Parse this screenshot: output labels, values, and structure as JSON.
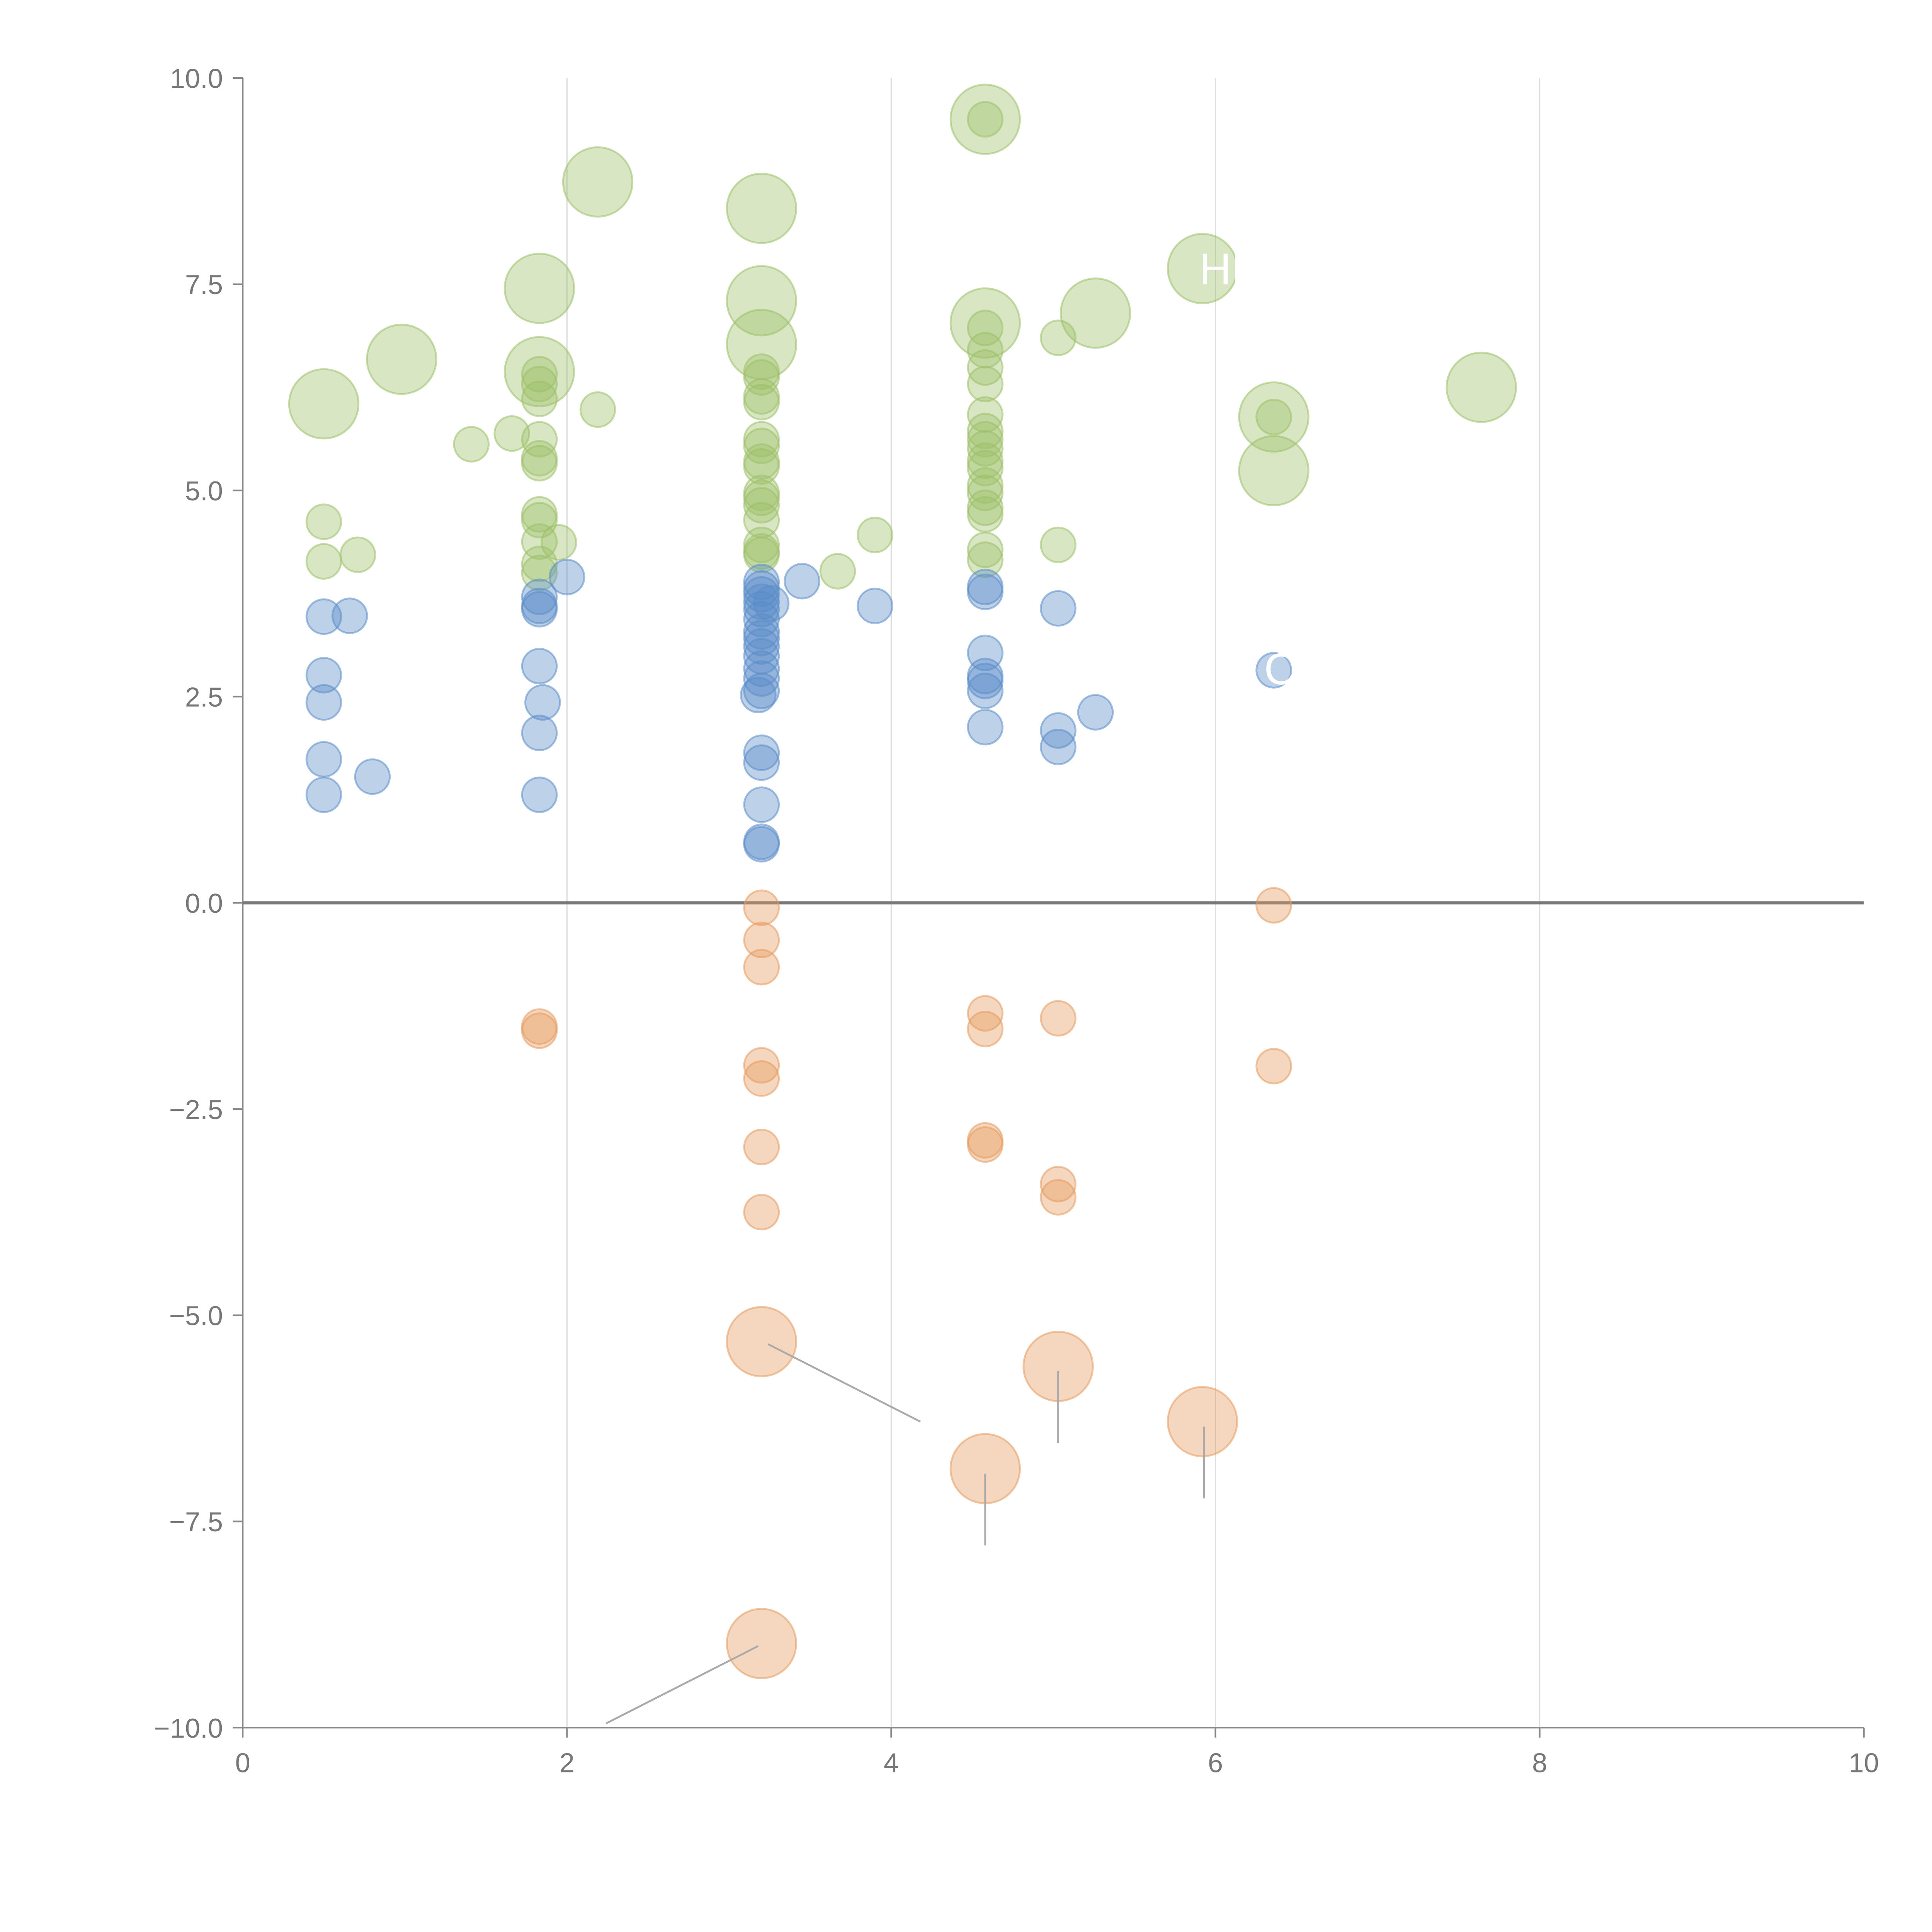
{
  "chart_data": {
    "type": "scatter",
    "title": "",
    "xlabel": "",
    "ylabel": "",
    "xlim": [
      0,
      10
    ],
    "ylim": [
      -10,
      10
    ],
    "x_ticks": [
      0,
      2,
      4,
      6,
      8,
      10
    ],
    "x_tick_labels": [
      "0",
      "2",
      "4",
      "6",
      "8",
      "10"
    ],
    "y_ticks": [
      10,
      7.5,
      5,
      2.5,
      0,
      -2.5,
      -5,
      -7.5,
      -10
    ],
    "y_tick_labels": [
      "10.0",
      "7.5",
      "5.0",
      "2.5",
      "0.0",
      "−2.5",
      "−5.0",
      "−7.5",
      "−10.0"
    ],
    "grid": "vertical",
    "zero_line": true,
    "point_format": "[x, y, size]",
    "series": [
      {
        "name": "green",
        "color": "#9dc068",
        "points": [
          [
            4.58,
            9.5,
            3
          ],
          [
            4.58,
            9.5,
            1
          ],
          [
            2.19,
            8.74,
            3
          ],
          [
            3.2,
            8.42,
            3
          ],
          [
            5.92,
            7.69,
            3
          ],
          [
            1.83,
            7.45,
            3
          ],
          [
            3.2,
            7.3,
            3
          ],
          [
            4.58,
            7.03,
            3
          ],
          [
            4.58,
            6.97,
            1
          ],
          [
            5.26,
            7.15,
            3
          ],
          [
            3.2,
            6.77,
            3
          ],
          [
            0.98,
            6.59,
            3
          ],
          [
            1.83,
            6.44,
            3
          ],
          [
            7.64,
            6.25,
            3
          ],
          [
            0.5,
            6.05,
            3
          ],
          [
            6.36,
            5.89,
            3
          ],
          [
            6.36,
            5.89,
            1
          ],
          [
            6.36,
            5.24,
            3
          ],
          [
            5.03,
            6.85,
            1
          ],
          [
            2.19,
            5.98,
            1
          ],
          [
            1.41,
            5.56,
            1
          ],
          [
            1.66,
            5.69,
            1
          ],
          [
            1.83,
            6.41,
            1
          ],
          [
            1.83,
            6.29,
            1
          ],
          [
            1.83,
            6.11,
            1
          ],
          [
            1.83,
            5.62,
            1
          ],
          [
            1.83,
            5.39,
            1
          ],
          [
            1.83,
            5.33,
            1
          ],
          [
            1.83,
            4.71,
            1
          ],
          [
            1.83,
            4.64,
            1
          ],
          [
            1.83,
            4.38,
            1
          ],
          [
            1.83,
            4.11,
            1
          ],
          [
            1.83,
            4.0,
            1
          ],
          [
            1.95,
            4.37,
            1
          ],
          [
            0.5,
            4.62,
            1
          ],
          [
            0.5,
            4.14,
            1
          ],
          [
            0.71,
            4.22,
            1
          ],
          [
            3.2,
            6.44,
            1
          ],
          [
            3.2,
            6.37,
            1
          ],
          [
            3.2,
            6.14,
            1
          ],
          [
            3.2,
            6.07,
            1
          ],
          [
            3.2,
            5.62,
            1
          ],
          [
            3.2,
            5.54,
            1
          ],
          [
            3.2,
            5.35,
            1
          ],
          [
            3.2,
            5.29,
            1
          ],
          [
            3.2,
            4.97,
            1
          ],
          [
            3.2,
            4.91,
            1
          ],
          [
            3.2,
            4.82,
            1
          ],
          [
            3.2,
            4.64,
            1
          ],
          [
            3.2,
            4.34,
            1
          ],
          [
            3.2,
            4.26,
            1
          ],
          [
            3.2,
            4.22,
            1
          ],
          [
            3.9,
            4.46,
            1
          ],
          [
            3.67,
            4.02,
            1
          ],
          [
            4.58,
            6.7,
            1
          ],
          [
            4.58,
            6.49,
            1
          ],
          [
            4.58,
            6.29,
            1
          ],
          [
            4.58,
            5.92,
            1
          ],
          [
            4.58,
            5.72,
            1
          ],
          [
            4.58,
            5.62,
            1
          ],
          [
            4.58,
            5.51,
            1
          ],
          [
            4.58,
            5.36,
            1
          ],
          [
            4.58,
            5.27,
            1
          ],
          [
            4.58,
            5.06,
            1
          ],
          [
            4.58,
            4.97,
            1
          ],
          [
            4.58,
            4.79,
            1
          ],
          [
            4.58,
            4.71,
            1
          ],
          [
            4.58,
            4.28,
            1
          ],
          [
            4.58,
            4.16,
            1
          ],
          [
            5.03,
            4.34,
            1
          ]
        ]
      },
      {
        "name": "blue",
        "color": "#5b8cc9",
        "points": [
          [
            0.5,
            3.47,
            1
          ],
          [
            0.66,
            3.48,
            1
          ],
          [
            0.5,
            2.76,
            1
          ],
          [
            0.5,
            2.43,
            1
          ],
          [
            0.5,
            1.74,
            1
          ],
          [
            0.5,
            1.31,
            1
          ],
          [
            0.8,
            1.53,
            1
          ],
          [
            1.83,
            3.71,
            1
          ],
          [
            1.83,
            3.6,
            1
          ],
          [
            1.83,
            3.56,
            1
          ],
          [
            1.83,
            2.87,
            1
          ],
          [
            1.85,
            2.43,
            1
          ],
          [
            1.83,
            2.06,
            1
          ],
          [
            1.83,
            1.31,
            1
          ],
          [
            2.0,
            3.95,
            1
          ],
          [
            3.2,
            3.89,
            1
          ],
          [
            3.2,
            3.81,
            1
          ],
          [
            3.2,
            3.74,
            1
          ],
          [
            3.2,
            3.65,
            1
          ],
          [
            3.2,
            3.56,
            1
          ],
          [
            3.2,
            3.44,
            1
          ],
          [
            3.2,
            3.29,
            1
          ],
          [
            3.2,
            3.21,
            1
          ],
          [
            3.2,
            3.11,
            1
          ],
          [
            3.2,
            2.99,
            1
          ],
          [
            3.2,
            2.84,
            1
          ],
          [
            3.2,
            2.72,
            1
          ],
          [
            3.2,
            2.57,
            1
          ],
          [
            3.18,
            2.52,
            1
          ],
          [
            3.2,
            1.82,
            1
          ],
          [
            3.2,
            1.7,
            1
          ],
          [
            3.2,
            1.19,
            1
          ],
          [
            3.2,
            0.74,
            1
          ],
          [
            3.2,
            0.71,
            1
          ],
          [
            3.26,
            3.63,
            1
          ],
          [
            3.45,
            3.9,
            1
          ],
          [
            3.9,
            3.6,
            1
          ],
          [
            4.58,
            3.83,
            1
          ],
          [
            4.58,
            3.77,
            1
          ],
          [
            4.58,
            3.03,
            1
          ],
          [
            4.58,
            2.75,
            1
          ],
          [
            4.58,
            2.69,
            1
          ],
          [
            4.58,
            2.57,
            1
          ],
          [
            4.58,
            2.13,
            1
          ],
          [
            5.03,
            3.57,
            1
          ],
          [
            5.03,
            2.09,
            1
          ],
          [
            5.03,
            1.89,
            1
          ],
          [
            5.26,
            2.31,
            1
          ],
          [
            6.36,
            2.82,
            1
          ]
        ]
      },
      {
        "name": "orange",
        "color": "#e59b5f",
        "points": [
          [
            6.36,
            -0.03,
            1
          ],
          [
            6.36,
            -1.98,
            1
          ],
          [
            3.2,
            -0.06,
            1
          ],
          [
            3.2,
            -0.45,
            1
          ],
          [
            3.2,
            -0.78,
            1
          ],
          [
            3.2,
            -1.97,
            1
          ],
          [
            3.2,
            -2.13,
            1
          ],
          [
            3.2,
            -2.96,
            1
          ],
          [
            3.2,
            -3.75,
            1
          ],
          [
            1.83,
            -1.5,
            1
          ],
          [
            1.83,
            -1.55,
            1
          ],
          [
            4.58,
            -1.34,
            1
          ],
          [
            4.58,
            -1.53,
            1
          ],
          [
            4.58,
            -2.88,
            1
          ],
          [
            4.58,
            -2.93,
            1
          ],
          [
            5.03,
            -1.4,
            1
          ],
          [
            5.03,
            -3.41,
            1
          ],
          [
            5.03,
            -3.57,
            1
          ],
          [
            3.2,
            -5.32,
            3
          ],
          [
            5.03,
            -5.62,
            3
          ],
          [
            5.92,
            -6.29,
            3
          ],
          [
            4.58,
            -6.86,
            3
          ],
          [
            3.2,
            -8.98,
            3
          ]
        ]
      }
    ],
    "leader_lines": [
      {
        "from": [
          3.24,
          -5.35
        ],
        "to": [
          4.18,
          -6.29
        ]
      },
      {
        "from": [
          5.03,
          -5.68
        ],
        "to": [
          5.03,
          -6.55
        ]
      },
      {
        "from": [
          5.93,
          -6.35
        ],
        "to": [
          5.93,
          -7.22
        ]
      },
      {
        "from": [
          4.58,
          -6.92
        ],
        "to": [
          4.58,
          -7.79
        ]
      },
      {
        "from": [
          3.18,
          -9.01
        ],
        "to": [
          2.24,
          -9.95
        ]
      }
    ],
    "annotations": [
      {
        "text": "HR",
        "x": 5.9,
        "y": 7.5
      },
      {
        "text": "C",
        "x": 6.3,
        "y": 2.65
      }
    ]
  }
}
